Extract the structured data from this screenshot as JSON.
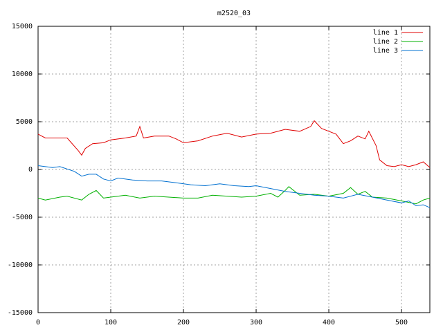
{
  "chart_data": {
    "type": "line",
    "title": "m2520_03",
    "xlim": [
      0,
      539
    ],
    "ylim": [
      -15000,
      15000
    ],
    "xticks": [
      0,
      100,
      200,
      300,
      400,
      500
    ],
    "yticks": [
      -15000,
      -10000,
      -5000,
      0,
      5000,
      10000,
      15000
    ],
    "grid": true,
    "legend": "top-right",
    "series": [
      {
        "name": "line 1",
        "color": "#e00000",
        "x": [
          0,
          10,
          40,
          55,
          60,
          65,
          75,
          90,
          100,
          120,
          135,
          140,
          145,
          160,
          180,
          190,
          200,
          220,
          240,
          260,
          280,
          300,
          320,
          340,
          360,
          375,
          380,
          390,
          400,
          410,
          420,
          430,
          440,
          450,
          455,
          465,
          470,
          480,
          490,
          500,
          510,
          520,
          530,
          539
        ],
        "values": [
          3700,
          3300,
          3300,
          2000,
          1500,
          2200,
          2700,
          2800,
          3100,
          3300,
          3500,
          4500,
          3300,
          3500,
          3500,
          3200,
          2800,
          3000,
          3500,
          3800,
          3400,
          3700,
          3800,
          4200,
          4000,
          4500,
          5100,
          4300,
          4000,
          3700,
          2700,
          3000,
          3500,
          3200,
          4000,
          2500,
          1000,
          400,
          300,
          500,
          300,
          500,
          800,
          200
        ]
      },
      {
        "name": "line 2",
        "color": "#00b000",
        "x": [
          0,
          10,
          30,
          40,
          60,
          70,
          80,
          90,
          100,
          120,
          140,
          160,
          180,
          200,
          220,
          240,
          260,
          280,
          300,
          320,
          330,
          340,
          345,
          360,
          380,
          400,
          420,
          430,
          440,
          450,
          460,
          480,
          500,
          520,
          530,
          539
        ],
        "values": [
          -3000,
          -3200,
          -2900,
          -2800,
          -3200,
          -2600,
          -2200,
          -3000,
          -2900,
          -2700,
          -3000,
          -2800,
          -2900,
          -3000,
          -3000,
          -2700,
          -2800,
          -2900,
          -2800,
          -2500,
          -2900,
          -2200,
          -1800,
          -2700,
          -2600,
          -2800,
          -2500,
          -1900,
          -2600,
          -2300,
          -2900,
          -3000,
          -3300,
          -3600,
          -3200,
          -3000
        ]
      },
      {
        "name": "line 3",
        "color": "#0070d0",
        "x": [
          0,
          20,
          30,
          50,
          60,
          70,
          80,
          90,
          100,
          110,
          130,
          150,
          170,
          190,
          210,
          230,
          250,
          270,
          290,
          300,
          320,
          340,
          360,
          380,
          400,
          420,
          440,
          460,
          480,
          500,
          510,
          520,
          530,
          539
        ],
        "values": [
          400,
          200,
          300,
          -200,
          -700,
          -500,
          -500,
          -1000,
          -1200,
          -900,
          -1100,
          -1200,
          -1200,
          -1400,
          -1600,
          -1700,
          -1500,
          -1700,
          -1800,
          -1700,
          -2000,
          -2300,
          -2500,
          -2700,
          -2800,
          -3000,
          -2600,
          -2900,
          -3200,
          -3500,
          -3300,
          -3800,
          -3700,
          -4000
        ]
      }
    ]
  }
}
